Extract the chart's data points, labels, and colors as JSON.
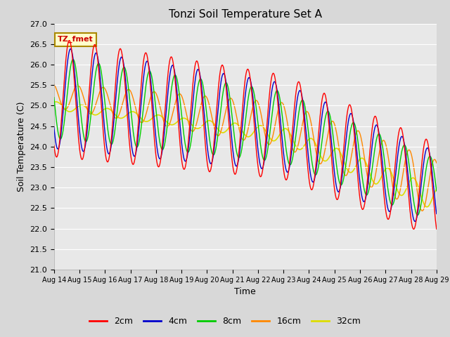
{
  "title": "Tonzi Soil Temperature Set A",
  "xlabel": "Time",
  "ylabel": "Soil Temperature (C)",
  "ylim": [
    21.0,
    27.0
  ],
  "yticks": [
    21.0,
    21.5,
    22.0,
    22.5,
    23.0,
    23.5,
    24.0,
    24.5,
    25.0,
    25.5,
    26.0,
    26.5,
    27.0
  ],
  "xtick_labels": [
    "Aug 14",
    "Aug 15",
    "Aug 16",
    "Aug 17",
    "Aug 18",
    "Aug 19",
    "Aug 20",
    "Aug 21",
    "Aug 22",
    "Aug 23",
    "Aug 24",
    "Aug 25",
    "Aug 26",
    "Aug 27",
    "Aug 28",
    "Aug 29"
  ],
  "colors": {
    "2cm": "#ff0000",
    "4cm": "#0000cc",
    "8cm": "#00cc00",
    "16cm": "#ff8800",
    "32cm": "#dddd00"
  },
  "legend_label": "TZ_fmet",
  "fig_bg": "#d8d8d8",
  "plot_bg": "#e8e8e8"
}
